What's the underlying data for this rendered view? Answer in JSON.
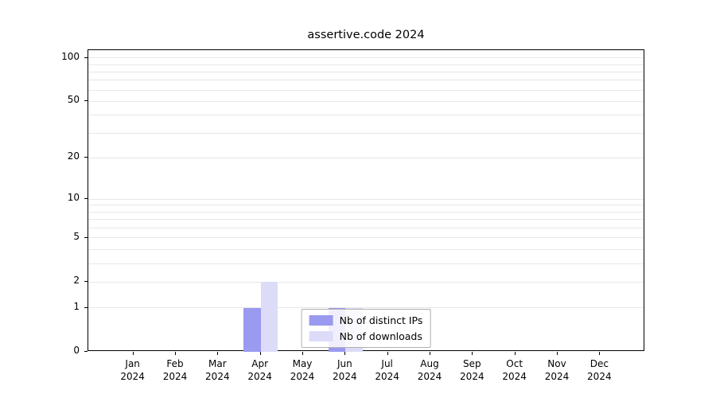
{
  "chart_data": {
    "type": "bar",
    "title": "assertive.code 2024",
    "x_months": [
      "Jan",
      "Feb",
      "Mar",
      "Apr",
      "May",
      "Jun",
      "Jul",
      "Aug",
      "Sep",
      "Oct",
      "Nov",
      "Dec"
    ],
    "x_year": "2024",
    "series": [
      {
        "name": "Nb of distinct IPs",
        "color": "#9a9af0",
        "values": [
          0,
          0,
          0,
          1,
          0,
          1,
          0,
          0,
          0,
          0,
          0,
          0
        ]
      },
      {
        "name": "Nb of downloads",
        "color": "#dcdcf9",
        "values": [
          0,
          0,
          0,
          2,
          0,
          1,
          0,
          0,
          0,
          0,
          0,
          0
        ]
      }
    ],
    "yticks": [
      100,
      50,
      20,
      10,
      5,
      2,
      1,
      0
    ],
    "grid_values": [
      1,
      2,
      3,
      4,
      5,
      6,
      7,
      8,
      9,
      10,
      20,
      30,
      40,
      50,
      60,
      70,
      80,
      90,
      100
    ],
    "scale": "log10(1+v)",
    "ylim": [
      0,
      113
    ],
    "grid": true,
    "legend_position": "lower center"
  }
}
